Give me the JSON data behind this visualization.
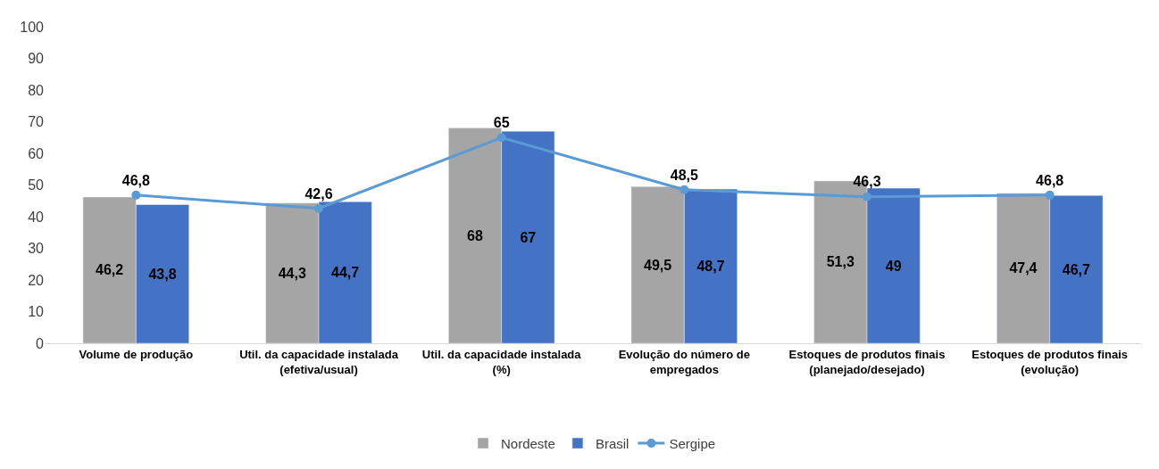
{
  "chart_data": {
    "type": "bar",
    "categories": [
      "Volume de produção",
      "Util. da capacidade instalada\n(efetiva/usual)",
      "Util. da capacidade instalada\n(%)",
      "Evolução do número de\nempregados",
      "Estoques de produtos finais\n(planejado/desejado)",
      "Estoques de produtos finais\n(evolução)"
    ],
    "series": [
      {
        "name": "Nordeste",
        "color": "#a5a5a5",
        "values": [
          46.2,
          44.3,
          68,
          49.5,
          51.3,
          47.4
        ],
        "value_labels": [
          "46,2",
          "44,3",
          "68",
          "49,5",
          "51,3",
          "47,4"
        ]
      },
      {
        "name": "Brasil",
        "color": "#4472c4",
        "values": [
          43.8,
          44.7,
          67,
          48.7,
          49,
          46.7
        ],
        "value_labels": [
          "43,8",
          "44,7",
          "67",
          "48,7",
          "49",
          "46,7"
        ]
      },
      {
        "name": "Sergipe",
        "type": "line",
        "color": "#5b9bd5",
        "marker": "circle",
        "values": [
          46.8,
          42.6,
          65,
          48.5,
          46.3,
          46.8
        ],
        "value_labels": [
          "46,8",
          "42,6",
          "65",
          "48,5",
          "46,3",
          "46,8"
        ]
      }
    ],
    "ylim": [
      0,
      100
    ],
    "yticks": [
      0,
      10,
      20,
      30,
      40,
      50,
      60,
      70,
      80,
      90,
      100
    ],
    "grid": false,
    "legend": "bottom"
  }
}
